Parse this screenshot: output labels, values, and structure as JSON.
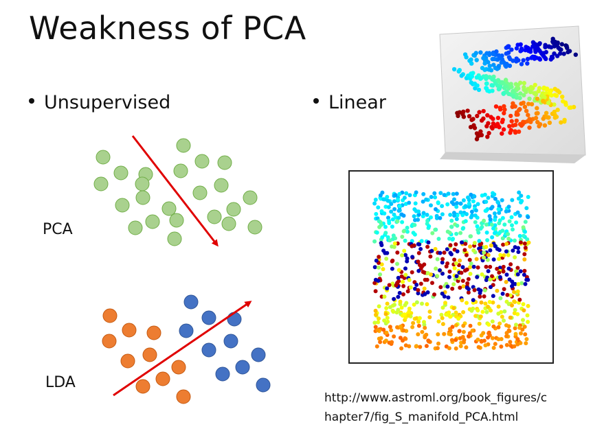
{
  "slide": {
    "title": "Weakness of PCA",
    "bullet_left": "Unsupervised",
    "bullet_right": "Linear",
    "label_pca": "PCA",
    "label_lda": "LDA",
    "url_line1": "http://www.astroml.org/book_figures/c",
    "url_line2": "hapter7/fig_S_manifold_PCA.html"
  },
  "colors": {
    "pca_fill": "#a9d18e",
    "pca_stroke": "#70ad47",
    "lda_orange": "#ed7d31",
    "lda_blue": "#4472c4",
    "arrow": "#e00000"
  },
  "icons": [
    "s-manifold-3d-image",
    "s-manifold-pca-projection-image"
  ]
}
